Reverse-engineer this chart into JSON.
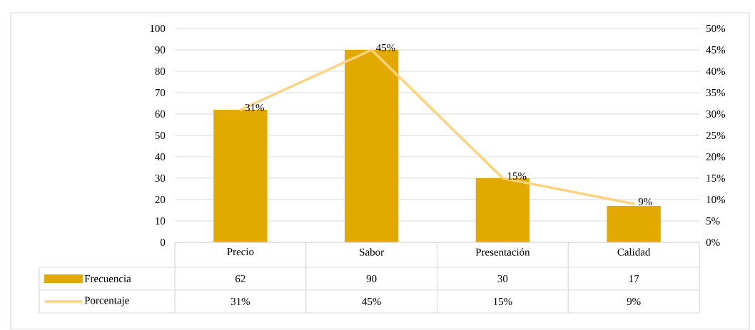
{
  "chart_data": {
    "type": "bar",
    "categories": [
      "Precio",
      "Sabor",
      "Presentación",
      "Calidad"
    ],
    "series": [
      {
        "name": "Frecuencia",
        "color": "#e2aa00",
        "values": [
          62,
          90,
          30,
          17
        ],
        "value_labels": [
          "62",
          "90",
          "30",
          "17"
        ]
      },
      {
        "name": "Porcentaje",
        "type": "line",
        "axis": "y2",
        "color": "#ffd27f",
        "values": [
          31,
          45,
          15,
          9
        ],
        "value_labels": [
          "31%",
          "45%",
          "15%",
          "9%"
        ]
      }
    ],
    "ylim": [
      0,
      100
    ],
    "yticks": [
      0,
      10,
      20,
      30,
      40,
      50,
      60,
      70,
      80,
      90,
      100
    ],
    "y2lim": [
      0,
      50
    ],
    "y2ticks": [
      {
        "value": 0,
        "label": "0%"
      },
      {
        "value": 5,
        "label": "5%"
      },
      {
        "value": 10,
        "label": "10%"
      },
      {
        "value": 15,
        "label": "15%"
      },
      {
        "value": 20,
        "label": "20%"
      },
      {
        "value": 25,
        "label": "25%"
      },
      {
        "value": 30,
        "label": "30%"
      },
      {
        "value": 35,
        "label": "35%"
      },
      {
        "value": 40,
        "label": "40%"
      },
      {
        "value": 45,
        "label": "45%"
      },
      {
        "value": 50,
        "label": "50%"
      }
    ],
    "grid": "y",
    "legend": "bottom"
  }
}
